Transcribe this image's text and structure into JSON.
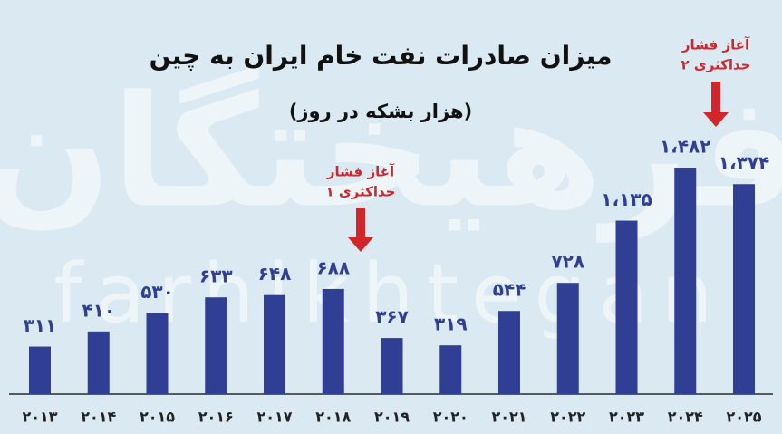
{
  "chart_data": {
    "type": "bar",
    "title": "میزان صادرات نفت خام ایران به چین",
    "subtitle": "(هزار بشکه در روز)",
    "watermark": [
      "فرهیختگان",
      "farhikhtegan"
    ],
    "categories": [
      "۲۰۱۳",
      "۲۰۱۴",
      "۲۰۱۵",
      "۲۰۱۶",
      "۲۰۱۷",
      "۲۰۱۸",
      "۲۰۱۹",
      "۲۰۲۰",
      "۲۰۲۱",
      "۲۰۲۲",
      "۲۰۲۳",
      "۲۰۲۴",
      "۲۰۲۵"
    ],
    "values": [
      311,
      410,
      530,
      633,
      648,
      688,
      367,
      319,
      544,
      728,
      1135,
      1482,
      1374
    ],
    "value_labels": [
      "۳۱۱",
      "۴۱۰",
      "۵۳۰",
      "۶۳۳",
      "۶۴۸",
      "۶۸۸",
      "۳۶۷",
      "۳۱۹",
      "۵۴۴",
      "۷۲۸",
      "۱،۱۳۵",
      "۱،۴۸۲",
      "۱،۳۷۴"
    ],
    "color": "#303f94",
    "annotations": [
      {
        "lines": [
          "آغاز فشار",
          "حداکثری ۱"
        ],
        "color": "#d3262b"
      },
      {
        "lines": [
          "آغاز فشار",
          "حداکثری ۲"
        ],
        "color": "#d3262b"
      }
    ]
  }
}
